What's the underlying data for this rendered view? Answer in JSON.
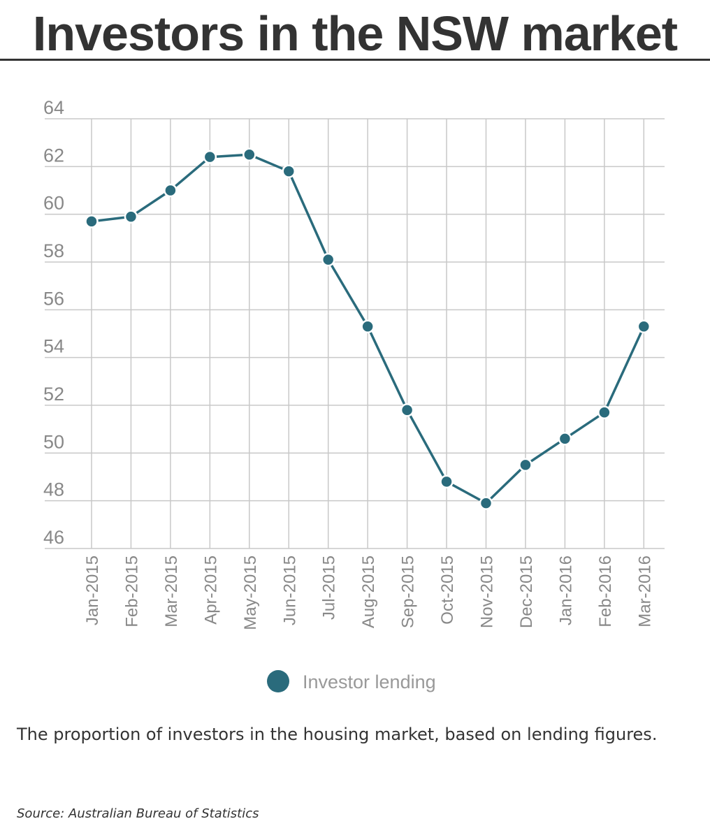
{
  "title": "Investors in the NSW market",
  "description": "The proportion of investors in the housing market, based on lending figures.",
  "source": "Source: Australian Bureau of Statistics",
  "colors": {
    "series": "#2a6b7c",
    "grid": "#c8c8c8",
    "text": "#333333",
    "tick": "#888888"
  },
  "chart_data": {
    "type": "line",
    "title": "",
    "xlabel": "",
    "ylabel": "",
    "ylim": [
      46,
      64
    ],
    "yticks": [
      46,
      48,
      50,
      52,
      54,
      56,
      58,
      60,
      62,
      64
    ],
    "grid": true,
    "legend_position": "bottom-center",
    "categories": [
      "Jan-2015",
      "Feb-2015",
      "Mar-2015",
      "Apr-2015",
      "May-2015",
      "Jun-2015",
      "Jul-2015",
      "Aug-2015",
      "Sep-2015",
      "Oct-2015",
      "Nov-2015",
      "Dec-2015",
      "Jan-2016",
      "Feb-2016",
      "Mar-2016"
    ],
    "series": [
      {
        "name": "Investor lending",
        "values": [
          59.7,
          59.9,
          61.0,
          62.4,
          62.5,
          61.8,
          58.1,
          55.3,
          51.8,
          48.8,
          47.9,
          49.5,
          50.6,
          51.7,
          55.3
        ]
      }
    ]
  }
}
